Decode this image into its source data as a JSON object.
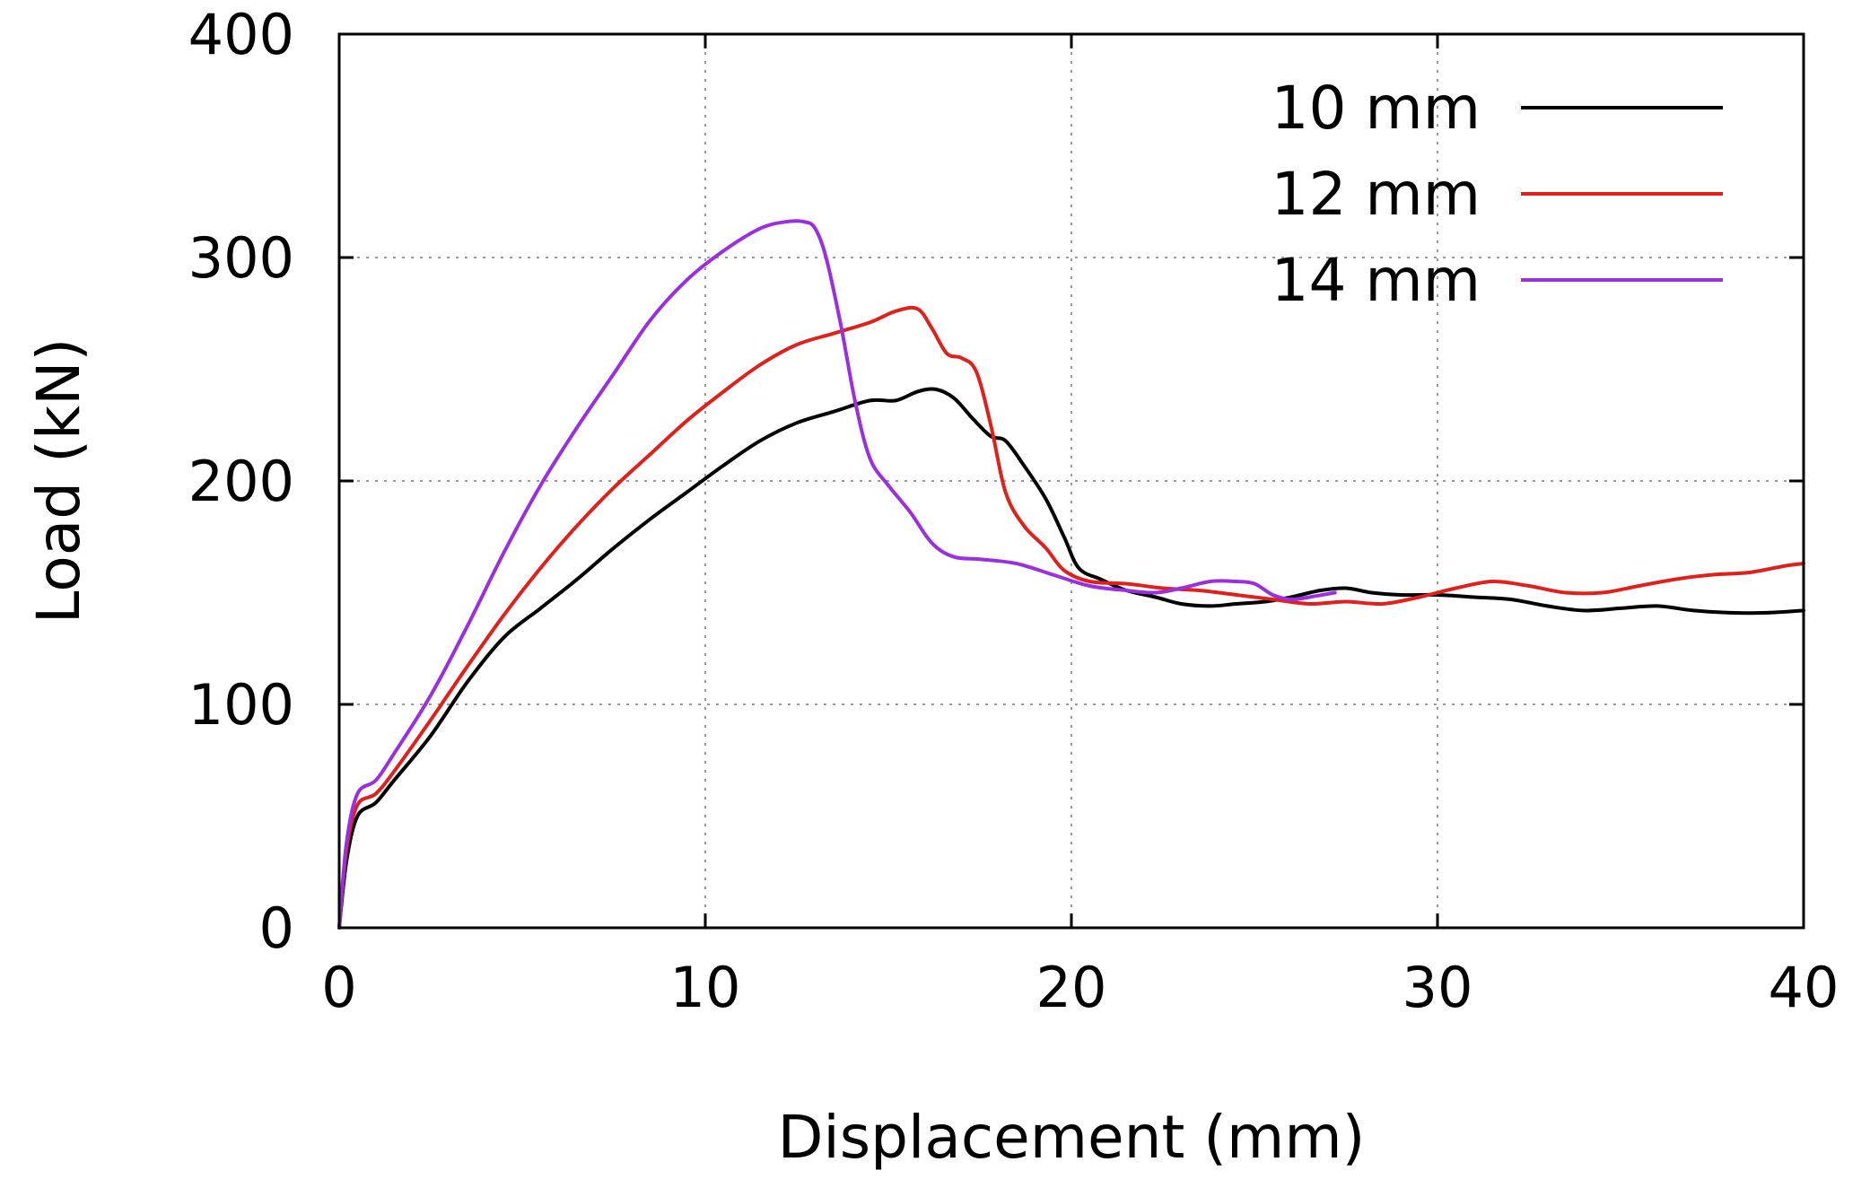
{
  "chart_data": {
    "type": "line",
    "title": "",
    "xlabel": "Displacement (mm)",
    "ylabel": "Load (kN)",
    "xlim": [
      0,
      40
    ],
    "ylim": [
      0,
      400
    ],
    "x_ticks": [
      0,
      10,
      20,
      30,
      40
    ],
    "y_ticks": [
      0,
      100,
      200,
      300,
      400
    ],
    "x_tick_labels": [
      "0",
      "10",
      "20",
      "30",
      "40"
    ],
    "y_tick_labels": [
      "0",
      "100",
      "200",
      "300",
      "400"
    ],
    "grid": true,
    "legend_position": "top-right",
    "series": [
      {
        "name": "10 mm",
        "color": "#000000",
        "points": [
          [
            0,
            0
          ],
          [
            0.2,
            30
          ],
          [
            0.5,
            50
          ],
          [
            1.0,
            56
          ],
          [
            1.5,
            66
          ],
          [
            2.5,
            86
          ],
          [
            3.5,
            110
          ],
          [
            4.5,
            130
          ],
          [
            5.5,
            143
          ],
          [
            6.5,
            156
          ],
          [
            7.5,
            170
          ],
          [
            8.5,
            183
          ],
          [
            9.5,
            195
          ],
          [
            10.5,
            207
          ],
          [
            11.5,
            218
          ],
          [
            12.5,
            226
          ],
          [
            13.5,
            231
          ],
          [
            14.5,
            236
          ],
          [
            15.2,
            236
          ],
          [
            15.8,
            240
          ],
          [
            16.3,
            241
          ],
          [
            16.8,
            237
          ],
          [
            17.3,
            228
          ],
          [
            17.8,
            220
          ],
          [
            18.2,
            218
          ],
          [
            18.7,
            207
          ],
          [
            19.3,
            192
          ],
          [
            19.8,
            175
          ],
          [
            20.2,
            161
          ],
          [
            20.8,
            156
          ],
          [
            21.5,
            151
          ],
          [
            22.3,
            148
          ],
          [
            23.0,
            145
          ],
          [
            23.8,
            144
          ],
          [
            24.5,
            145
          ],
          [
            25.3,
            146
          ],
          [
            26.0,
            148
          ],
          [
            26.8,
            151
          ],
          [
            27.5,
            152
          ],
          [
            28.2,
            150
          ],
          [
            29.0,
            149
          ],
          [
            30.0,
            149
          ],
          [
            31.0,
            148
          ],
          [
            32.0,
            147
          ],
          [
            33.0,
            144
          ],
          [
            34.0,
            142
          ],
          [
            35.0,
            143
          ],
          [
            36.0,
            144
          ],
          [
            37.0,
            142
          ],
          [
            38.0,
            141
          ],
          [
            39.0,
            141
          ],
          [
            40.0,
            142
          ]
        ]
      },
      {
        "name": "12 mm",
        "color": "#e0201b",
        "points": [
          [
            0,
            0
          ],
          [
            0.2,
            35
          ],
          [
            0.5,
            55
          ],
          [
            1.0,
            60
          ],
          [
            1.5,
            70
          ],
          [
            2.5,
            93
          ],
          [
            3.5,
            117
          ],
          [
            4.5,
            140
          ],
          [
            5.5,
            161
          ],
          [
            6.5,
            180
          ],
          [
            7.5,
            197
          ],
          [
            8.5,
            212
          ],
          [
            9.5,
            227
          ],
          [
            10.5,
            240
          ],
          [
            11.5,
            252
          ],
          [
            12.5,
            261
          ],
          [
            13.5,
            266
          ],
          [
            14.5,
            271
          ],
          [
            15.2,
            276
          ],
          [
            15.8,
            277
          ],
          [
            16.2,
            268
          ],
          [
            16.6,
            257
          ],
          [
            17.0,
            255
          ],
          [
            17.4,
            249
          ],
          [
            17.8,
            225
          ],
          [
            18.2,
            195
          ],
          [
            18.7,
            180
          ],
          [
            19.3,
            170
          ],
          [
            19.8,
            160
          ],
          [
            20.5,
            155
          ],
          [
            21.5,
            154
          ],
          [
            22.5,
            152
          ],
          [
            23.5,
            151
          ],
          [
            24.5,
            149
          ],
          [
            25.5,
            147
          ],
          [
            26.5,
            145
          ],
          [
            27.5,
            146
          ],
          [
            28.5,
            145
          ],
          [
            29.5,
            148
          ],
          [
            30.5,
            152
          ],
          [
            31.5,
            155
          ],
          [
            32.5,
            153
          ],
          [
            33.5,
            150
          ],
          [
            34.5,
            150
          ],
          [
            35.5,
            153
          ],
          [
            36.5,
            156
          ],
          [
            37.5,
            158
          ],
          [
            38.5,
            159
          ],
          [
            39.5,
            162
          ],
          [
            40.0,
            163
          ]
        ]
      },
      {
        "name": "14 mm",
        "color": "#9b2fe0",
        "points": [
          [
            0,
            0
          ],
          [
            0.2,
            38
          ],
          [
            0.5,
            60
          ],
          [
            1.0,
            66
          ],
          [
            1.5,
            78
          ],
          [
            2.5,
            104
          ],
          [
            3.5,
            135
          ],
          [
            4.5,
            168
          ],
          [
            5.5,
            198
          ],
          [
            6.5,
            224
          ],
          [
            7.5,
            248
          ],
          [
            8.5,
            272
          ],
          [
            9.5,
            290
          ],
          [
            10.5,
            303
          ],
          [
            11.5,
            313
          ],
          [
            12.2,
            316
          ],
          [
            12.7,
            316
          ],
          [
            13.0,
            313
          ],
          [
            13.3,
            300
          ],
          [
            13.7,
            270
          ],
          [
            14.1,
            235
          ],
          [
            14.5,
            210
          ],
          [
            15.0,
            198
          ],
          [
            15.6,
            186
          ],
          [
            16.2,
            172
          ],
          [
            16.8,
            166
          ],
          [
            17.5,
            165
          ],
          [
            18.5,
            163
          ],
          [
            19.5,
            158
          ],
          [
            20.5,
            153
          ],
          [
            21.5,
            151
          ],
          [
            22.3,
            150
          ],
          [
            23.0,
            152
          ],
          [
            23.8,
            155
          ],
          [
            24.5,
            155
          ],
          [
            25.0,
            154
          ],
          [
            25.5,
            149
          ],
          [
            26.0,
            147
          ],
          [
            26.5,
            148
          ],
          [
            27.2,
            150
          ]
        ]
      }
    ]
  }
}
